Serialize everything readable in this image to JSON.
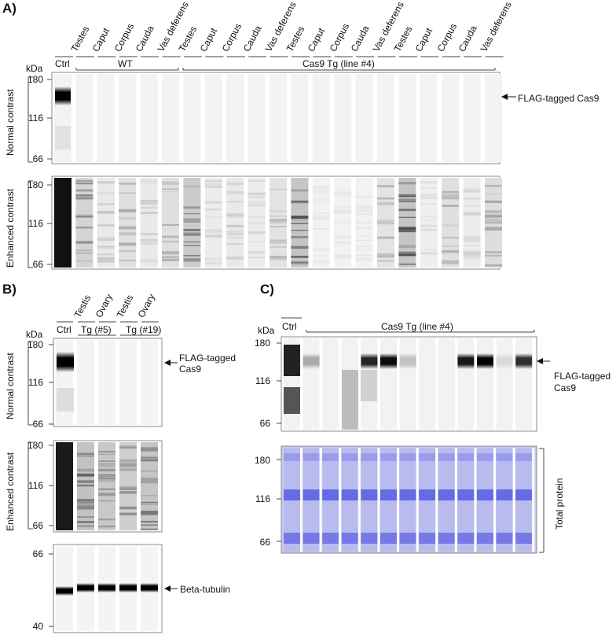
{
  "panels": {
    "A": {
      "letter": "A)",
      "kda": "kDa",
      "ctrl": "Ctrl",
      "group_wt": "WT",
      "group_tg": "Cas9 Tg (line #4)",
      "lanes": [
        "Testes",
        "Caput",
        "Corpus",
        "Cauda",
        "Vas deferens",
        "Testes",
        "Caput",
        "Corpus",
        "Cauda",
        "Vas deferens",
        "Testes",
        "Caput",
        "Corpus",
        "Cauda",
        "Vas deferens",
        "Testes",
        "Caput",
        "Corpus",
        "Cauda",
        "Vas deferens"
      ],
      "normal_label": "Normal contrast",
      "enhanced_label": "Enhanced contrast",
      "ticks": [
        "180",
        "116",
        "66"
      ],
      "arrow_label": "FLAG-tagged Cas9"
    },
    "B": {
      "letter": "B)",
      "kda": "kDa",
      "ctrl": "Ctrl",
      "lanes": [
        "Testis",
        "Ovary",
        "Testis",
        "Ovary"
      ],
      "group1": "Tg (#5)",
      "group2": "Tg (#19)",
      "normal_label": "Normal contrast",
      "enhanced_label": "Enhanced contrast",
      "ticks": [
        "180",
        "116",
        "66"
      ],
      "tubulin_ticks": [
        "66",
        "40"
      ],
      "arrow_label_1": "FLAG-tagged",
      "arrow_label_2": "Cas9",
      "tubulin_label": "Beta-tubulin"
    },
    "C": {
      "letter": "C)",
      "kda": "kDa",
      "ctrl": "Ctrl",
      "group": "Cas9 Tg (line #4)",
      "ticks": [
        "180",
        "116",
        "66"
      ],
      "arrow_label_1": "FLAG-tagged",
      "arrow_label_2": "Cas9",
      "total_protein": "Total protein"
    }
  }
}
